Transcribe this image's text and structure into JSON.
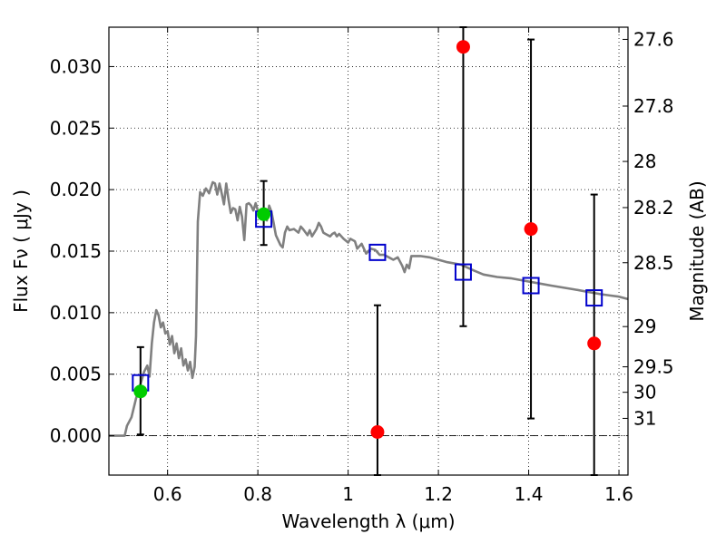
{
  "chart_data": {
    "type": "scatter",
    "xlabel": "Wavelength  λ (μm)",
    "ylabel": "Flux  Fν  ( μJy )",
    "y2label": "Magnitude (AB)",
    "xlim": [
      0.47,
      1.62
    ],
    "ylim": [
      -0.0032,
      0.0332
    ],
    "grid": true,
    "x_ticks": [
      {
        "value": 0.6,
        "label": "0.6"
      },
      {
        "value": 0.8,
        "label": "0.8"
      },
      {
        "value": 1.0,
        "label": "1"
      },
      {
        "value": 1.2,
        "label": "1.2"
      },
      {
        "value": 1.4,
        "label": "1.4"
      },
      {
        "value": 1.6,
        "label": "1.6"
      }
    ],
    "y_ticks": [
      {
        "value": 0.0,
        "label": "0.000"
      },
      {
        "value": 0.005,
        "label": "0.005"
      },
      {
        "value": 0.01,
        "label": "0.010"
      },
      {
        "value": 0.015,
        "label": "0.015"
      },
      {
        "value": 0.02,
        "label": "0.020"
      },
      {
        "value": 0.025,
        "label": "0.025"
      },
      {
        "value": 0.03,
        "label": "0.030"
      }
    ],
    "y2_ticks": [
      {
        "flux": 0.03221,
        "label": "27.6"
      },
      {
        "flux": 0.02679,
        "label": "27.8"
      },
      {
        "flux": 0.02229,
        "label": "28"
      },
      {
        "flux": 0.01854,
        "label": "28.2"
      },
      {
        "flux": 0.01406,
        "label": "28.5"
      },
      {
        "flux": 0.00887,
        "label": "29"
      },
      {
        "flux": 0.0056,
        "label": "29.5"
      },
      {
        "flux": 0.00353,
        "label": "30"
      },
      {
        "flux": 0.00141,
        "label": "31"
      }
    ],
    "series": [
      {
        "name": "model-sed",
        "kind": "line",
        "color": "#808080",
        "points": [
          [
            0.47,
            0.0
          ],
          [
            0.495,
            0.0
          ],
          [
            0.505,
            0.0
          ],
          [
            0.51,
            0.0008
          ],
          [
            0.52,
            0.0015
          ],
          [
            0.53,
            0.003
          ],
          [
            0.54,
            0.0042
          ],
          [
            0.548,
            0.0052
          ],
          [
            0.555,
            0.0057
          ],
          [
            0.56,
            0.0048
          ],
          [
            0.565,
            0.0075
          ],
          [
            0.57,
            0.0092
          ],
          [
            0.575,
            0.0102
          ],
          [
            0.58,
            0.0098
          ],
          [
            0.585,
            0.0088
          ],
          [
            0.59,
            0.0092
          ],
          [
            0.595,
            0.0083
          ],
          [
            0.6,
            0.0085
          ],
          [
            0.605,
            0.0074
          ],
          [
            0.61,
            0.0081
          ],
          [
            0.615,
            0.0067
          ],
          [
            0.62,
            0.0075
          ],
          [
            0.625,
            0.0063
          ],
          [
            0.63,
            0.0071
          ],
          [
            0.635,
            0.0057
          ],
          [
            0.64,
            0.0062
          ],
          [
            0.645,
            0.0053
          ],
          [
            0.65,
            0.006
          ],
          [
            0.655,
            0.0047
          ],
          [
            0.66,
            0.0056
          ],
          [
            0.663,
            0.0081
          ],
          [
            0.667,
            0.0174
          ],
          [
            0.672,
            0.0198
          ],
          [
            0.678,
            0.0195
          ],
          [
            0.685,
            0.0201
          ],
          [
            0.692,
            0.0197
          ],
          [
            0.7,
            0.0206
          ],
          [
            0.705,
            0.0205
          ],
          [
            0.71,
            0.0196
          ],
          [
            0.715,
            0.0205
          ],
          [
            0.72,
            0.0197
          ],
          [
            0.725,
            0.0188
          ],
          [
            0.73,
            0.0205
          ],
          [
            0.735,
            0.0192
          ],
          [
            0.74,
            0.0181
          ],
          [
            0.745,
            0.0185
          ],
          [
            0.75,
            0.0184
          ],
          [
            0.755,
            0.0175
          ],
          [
            0.76,
            0.0186
          ],
          [
            0.765,
            0.0178
          ],
          [
            0.77,
            0.0159
          ],
          [
            0.775,
            0.0188
          ],
          [
            0.78,
            0.0189
          ],
          [
            0.785,
            0.0187
          ],
          [
            0.79,
            0.0183
          ],
          [
            0.795,
            0.0189
          ],
          [
            0.8,
            0.0183
          ],
          [
            0.805,
            0.0183
          ],
          [
            0.81,
            0.0184
          ],
          [
            0.815,
            0.0178
          ],
          [
            0.82,
            0.0175
          ],
          [
            0.825,
            0.0187
          ],
          [
            0.83,
            0.0182
          ],
          [
            0.835,
            0.0173
          ],
          [
            0.84,
            0.0163
          ],
          [
            0.845,
            0.0159
          ],
          [
            0.85,
            0.0155
          ],
          [
            0.855,
            0.0153
          ],
          [
            0.86,
            0.0165
          ],
          [
            0.865,
            0.017
          ],
          [
            0.87,
            0.0167
          ],
          [
            0.88,
            0.0168
          ],
          [
            0.89,
            0.0165
          ],
          [
            0.895,
            0.017
          ],
          [
            0.9,
            0.0168
          ],
          [
            0.91,
            0.0163
          ],
          [
            0.915,
            0.0167
          ],
          [
            0.92,
            0.0162
          ],
          [
            0.93,
            0.0168
          ],
          [
            0.935,
            0.0173
          ],
          [
            0.94,
            0.017
          ],
          [
            0.945,
            0.0165
          ],
          [
            0.95,
            0.0164
          ],
          [
            0.96,
            0.0162
          ],
          [
            0.965,
            0.0164
          ],
          [
            0.97,
            0.0165
          ],
          [
            0.975,
            0.0162
          ],
          [
            0.98,
            0.0164
          ],
          [
            0.99,
            0.016
          ],
          [
            1.0,
            0.0157
          ],
          [
            1.005,
            0.016
          ],
          [
            1.015,
            0.0158
          ],
          [
            1.02,
            0.0152
          ],
          [
            1.03,
            0.0156
          ],
          [
            1.04,
            0.0148
          ],
          [
            1.05,
            0.0152
          ],
          [
            1.06,
            0.0151
          ],
          [
            1.07,
            0.0147
          ],
          [
            1.08,
            0.0147
          ],
          [
            1.09,
            0.0145
          ],
          [
            1.1,
            0.0143
          ],
          [
            1.11,
            0.0145
          ],
          [
            1.12,
            0.0138
          ],
          [
            1.125,
            0.0133
          ],
          [
            1.13,
            0.0139
          ],
          [
            1.135,
            0.0136
          ],
          [
            1.14,
            0.0146
          ],
          [
            1.16,
            0.0146
          ],
          [
            1.18,
            0.0145
          ],
          [
            1.2,
            0.0143
          ],
          [
            1.22,
            0.0141
          ],
          [
            1.25,
            0.0139
          ],
          [
            1.28,
            0.0134
          ],
          [
            1.3,
            0.0131
          ],
          [
            1.33,
            0.0129
          ],
          [
            1.36,
            0.0128
          ],
          [
            1.39,
            0.0126
          ],
          [
            1.42,
            0.0124
          ],
          [
            1.45,
            0.0122
          ],
          [
            1.5,
            0.0119
          ],
          [
            1.53,
            0.0117
          ],
          [
            1.56,
            0.0115
          ],
          [
            1.58,
            0.0114
          ],
          [
            1.6,
            0.0113
          ],
          [
            1.62,
            0.0111
          ]
        ]
      },
      {
        "name": "model-bandpass-flux",
        "kind": "square",
        "color": "#0000cc",
        "points": [
          [
            0.54,
            0.0043
          ],
          [
            0.813,
            0.0176
          ],
          [
            1.065,
            0.0149
          ],
          [
            1.255,
            0.0133
          ],
          [
            1.405,
            0.0122
          ],
          [
            1.545,
            0.0112
          ]
        ]
      },
      {
        "name": "detections",
        "kind": "circle",
        "color": "#00cc00",
        "points": [
          [
            0.54,
            0.0036
          ],
          [
            0.813,
            0.018
          ]
        ],
        "errors": [
          [
            0.0001,
            0.0072
          ],
          [
            0.0155,
            0.0207
          ]
        ]
      },
      {
        "name": "nondetections",
        "kind": "circle",
        "color": "#ff0000",
        "points": [
          [
            1.065,
            0.0003
          ],
          [
            1.255,
            0.0316
          ],
          [
            1.405,
            0.0168
          ],
          [
            1.545,
            0.0075
          ]
        ],
        "errors": [
          [
            -0.0032,
            0.0106
          ],
          [
            0.0089,
            0.0332
          ],
          [
            0.0014,
            0.0322
          ],
          [
            -0.0032,
            0.0196
          ]
        ]
      }
    ]
  }
}
